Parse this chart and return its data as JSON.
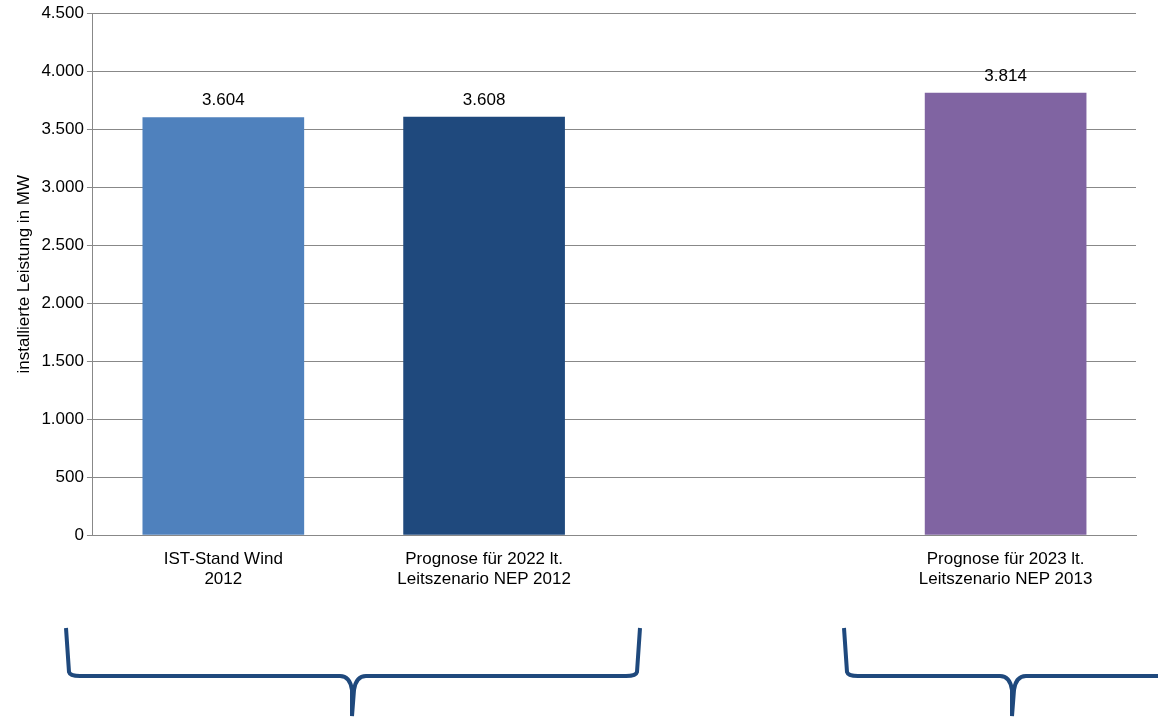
{
  "chart_data": {
    "type": "bar",
    "ylabel": "installierte Leistung in MW",
    "categories": [
      "IST-Stand Wind\n2012",
      "Prognose für 2022 lt.\nLeitszenario NEP 2012",
      null,
      "Prognose für 2023 lt.\nLeitszenario NEP 2013"
    ],
    "values": [
      3604,
      3608,
      null,
      3814
    ],
    "colors": [
      "#4f81bd",
      "#1f497d",
      "#8064a2",
      "#8064a2"
    ],
    "value_labels": [
      "3.604",
      "3.608",
      null,
      "3.814"
    ],
    "ylim": [
      0,
      4500
    ],
    "yticks": [
      0,
      500,
      {
        "value": 1000,
        "label": "1.000"
      },
      {
        "value": 1500,
        "label": "1.500"
      },
      {
        "value": 2000,
        "label": "2.000"
      },
      {
        "value": 2500,
        "label": "2.500"
      },
      {
        "value": 3000,
        "label": "3.000"
      },
      {
        "value": 3500,
        "label": "3.500"
      },
      {
        "value": 4000,
        "label": "4.000"
      },
      {
        "value": 4500,
        "label": "4.500"
      }
    ],
    "grid": "y",
    "legend": false
  }
}
